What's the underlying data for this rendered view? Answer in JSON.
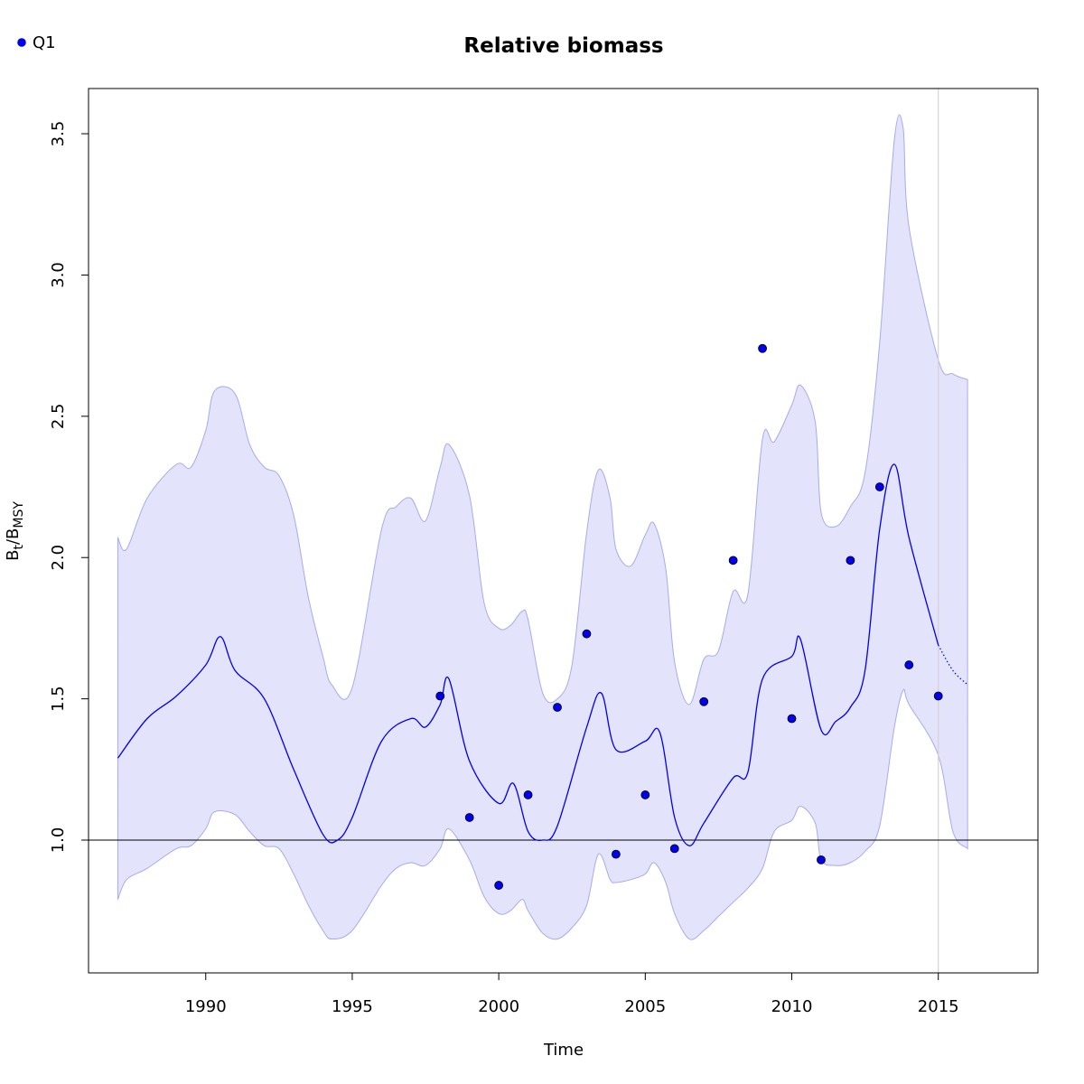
{
  "chart_data": {
    "type": "line",
    "title": "Relative biomass",
    "xlabel": "Time",
    "ylabel": {
      "main": "B",
      "sub1": "t",
      "slash": "/B",
      "sub2": "MSY"
    },
    "xlim": [
      1986.0,
      2018.4
    ],
    "ylim": [
      0.53,
      3.66
    ],
    "x_ticks": [
      1990,
      1995,
      2000,
      2005,
      2010,
      2015
    ],
    "y_ticks": [
      1.0,
      1.5,
      2.0,
      2.5,
      3.0,
      3.5
    ],
    "y_tick_labels": [
      "1.0",
      "1.5",
      "2.0",
      "2.5",
      "3.0",
      "3.5"
    ],
    "reference_line_y": 1.0,
    "forecast_start_x": 2015,
    "legend": {
      "position": "top-left",
      "entries": [
        {
          "name": "Q1",
          "color": "#0000ee"
        }
      ]
    },
    "colors": {
      "line": "#0000ee",
      "band_fill": "#e3e3fc",
      "band_stroke": "#a9a9ef",
      "points": "#0000ee",
      "vline": "#d3d3d3"
    },
    "estimate": {
      "x": [
        1987.0,
        1988.0,
        1989.0,
        1990.0,
        1990.5,
        1991.0,
        1992.0,
        1993.0,
        1994.0,
        1994.5,
        1995.0,
        1996.0,
        1997.0,
        1997.5,
        1998.0,
        1998.3,
        1999.0,
        2000.0,
        2000.5,
        2001.0,
        2001.5,
        2002.0,
        2003.0,
        2003.5,
        2004.0,
        2005.0,
        2005.5,
        2006.0,
        2006.5,
        2007.0,
        2008.0,
        2008.5,
        2009.0,
        2010.0,
        2010.3,
        2011.0,
        2011.5,
        2012.0,
        2012.5,
        2013.0,
        2013.5,
        2014.0,
        2015.0
      ],
      "y": [
        1.29,
        1.43,
        1.51,
        1.62,
        1.72,
        1.6,
        1.5,
        1.25,
        1.02,
        1.0,
        1.08,
        1.35,
        1.43,
        1.4,
        1.48,
        1.57,
        1.28,
        1.13,
        1.2,
        1.03,
        1.0,
        1.05,
        1.4,
        1.52,
        1.32,
        1.35,
        1.38,
        1.08,
        0.98,
        1.06,
        1.22,
        1.24,
        1.57,
        1.65,
        1.71,
        1.39,
        1.42,
        1.47,
        1.6,
        2.1,
        2.33,
        2.07,
        1.69
      ]
    },
    "forecast": {
      "x": [
        2015.0,
        2015.5,
        2016.0
      ],
      "y": [
        1.69,
        1.6,
        1.55
      ]
    },
    "confidence_band": {
      "x": [
        1987.0,
        1987.3,
        1988.0,
        1989.0,
        1989.5,
        1990.0,
        1990.3,
        1991.0,
        1991.5,
        1992.0,
        1992.5,
        1993.0,
        1993.5,
        1994.0,
        1994.3,
        1995.0,
        1996.0,
        1996.5,
        1997.0,
        1997.5,
        1998.0,
        1998.3,
        1999.0,
        1999.5,
        2000.0,
        2000.4,
        2000.8,
        2001.0,
        2001.5,
        2002.0,
        2002.5,
        2003.0,
        2003.4,
        2003.8,
        2004.0,
        2004.5,
        2005.0,
        2005.3,
        2005.7,
        2006.0,
        2006.5,
        2007.0,
        2007.5,
        2008.0,
        2008.5,
        2009.0,
        2009.4,
        2010.0,
        2010.3,
        2010.8,
        2011.0,
        2011.5,
        2012.0,
        2012.5,
        2013.0,
        2013.5,
        2013.8,
        2014.0,
        2015.0,
        2015.5,
        2016.0
      ],
      "lower": [
        0.79,
        0.86,
        0.9,
        0.97,
        0.98,
        1.04,
        1.1,
        1.09,
        1.03,
        0.98,
        0.97,
        0.88,
        0.77,
        0.68,
        0.65,
        0.68,
        0.84,
        0.9,
        0.92,
        0.91,
        0.97,
        1.04,
        0.93,
        0.8,
        0.74,
        0.75,
        0.79,
        0.75,
        0.67,
        0.65,
        0.69,
        0.77,
        0.95,
        0.86,
        0.85,
        0.86,
        0.88,
        0.92,
        0.85,
        0.74,
        0.65,
        0.68,
        0.73,
        0.78,
        0.83,
        0.9,
        1.03,
        1.07,
        1.12,
        1.06,
        0.93,
        0.91,
        0.92,
        0.96,
        1.05,
        1.4,
        1.53,
        1.48,
        1.3,
        1.03,
        0.97
      ],
      "upper": [
        2.07,
        2.03,
        2.21,
        2.33,
        2.32,
        2.45,
        2.59,
        2.58,
        2.4,
        2.32,
        2.29,
        2.15,
        1.86,
        1.65,
        1.55,
        1.54,
        2.1,
        2.18,
        2.21,
        2.13,
        2.32,
        2.4,
        2.22,
        1.84,
        1.75,
        1.76,
        1.81,
        1.78,
        1.52,
        1.5,
        1.62,
        2.09,
        2.31,
        2.21,
        2.03,
        1.97,
        2.08,
        2.12,
        1.96,
        1.63,
        1.48,
        1.64,
        1.67,
        1.88,
        1.87,
        2.42,
        2.41,
        2.54,
        2.61,
        2.48,
        2.16,
        2.11,
        2.18,
        2.3,
        2.76,
        3.48,
        3.52,
        3.17,
        2.7,
        2.65,
        2.63
      ]
    },
    "observations": {
      "x": [
        1998,
        1999,
        2000,
        2001,
        2002,
        2003,
        2004,
        2005,
        2006,
        2007,
        2008,
        2009,
        2010,
        2011,
        2012,
        2013,
        2014,
        2015
      ],
      "y": [
        1.51,
        1.08,
        0.84,
        1.16,
        1.47,
        1.73,
        0.95,
        1.16,
        0.97,
        1.49,
        1.99,
        2.74,
        1.43,
        0.93,
        1.99,
        2.25,
        1.62,
        1.51
      ]
    }
  }
}
